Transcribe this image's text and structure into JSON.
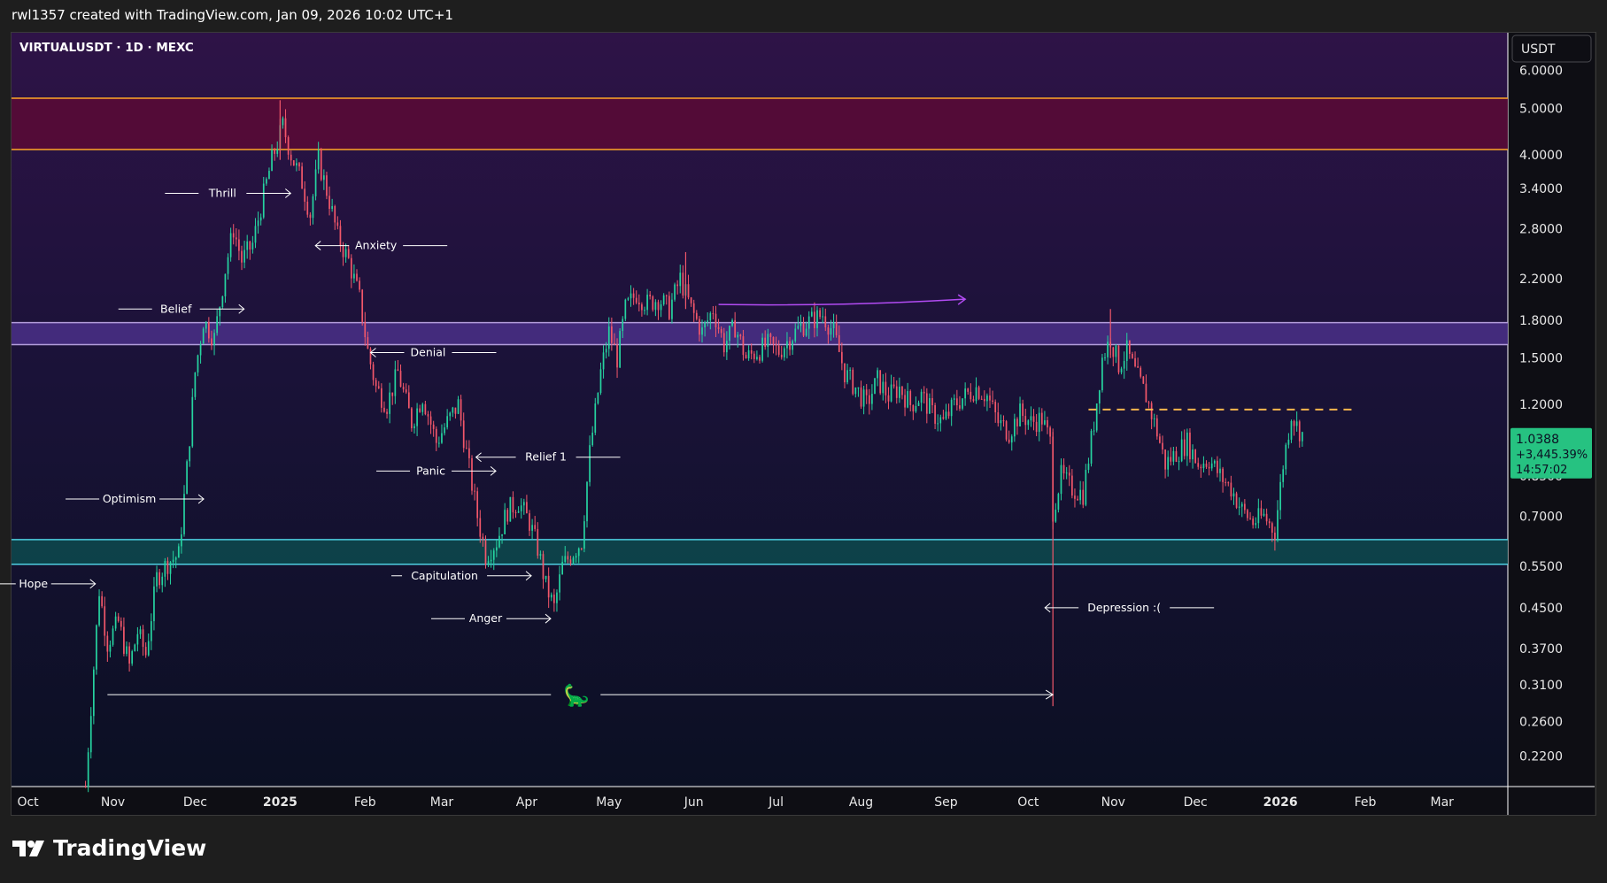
{
  "header": {
    "text": "rwl1357 created with TradingView.com, Jan 09, 2026 10:02 UTC+1"
  },
  "brand": {
    "name": "TradingView"
  },
  "chart_data": {
    "type": "candlestick",
    "symbol": "VIRTUALUSDT · 1D · MEXC",
    "currency": "USDT",
    "scale": "log",
    "ylim": [
      0.19,
      7.2
    ],
    "y_ticks": [
      "6.0000",
      "5.0000",
      "4.0000",
      "3.4000",
      "2.8000",
      "2.2000",
      "1.8000",
      "1.5000",
      "1.2000",
      "0.8500",
      "0.7000",
      "0.5500",
      "0.4500",
      "0.3700",
      "0.3100",
      "0.2600",
      "0.2200"
    ],
    "x_range": [
      "2024-09-25",
      "2026-03-25"
    ],
    "x_ticks": [
      {
        "label": "Oct",
        "date": "2024-10-01"
      },
      {
        "label": "Nov",
        "date": "2024-11-01"
      },
      {
        "label": "Dec",
        "date": "2024-12-01"
      },
      {
        "label": "2025",
        "date": "2025-01-01",
        "bold": true
      },
      {
        "label": "Feb",
        "date": "2025-02-01"
      },
      {
        "label": "Mar",
        "date": "2025-03-01"
      },
      {
        "label": "Apr",
        "date": "2025-04-01"
      },
      {
        "label": "May",
        "date": "2025-05-01"
      },
      {
        "label": "Jun",
        "date": "2025-06-01"
      },
      {
        "label": "Jul",
        "date": "2025-07-01"
      },
      {
        "label": "Aug",
        "date": "2025-08-01"
      },
      {
        "label": "Sep",
        "date": "2025-09-01"
      },
      {
        "label": "Oct",
        "date": "2025-10-01"
      },
      {
        "label": "Nov",
        "date": "2025-11-01"
      },
      {
        "label": "Dec",
        "date": "2025-12-01"
      },
      {
        "label": "2026",
        "date": "2026-01-01",
        "bold": true
      },
      {
        "label": "Feb",
        "date": "2026-02-01"
      },
      {
        "label": "Mar",
        "date": "2026-03-01"
      }
    ],
    "path": [
      [
        "2024-10-22",
        0.19
      ],
      [
        "2024-10-24",
        0.28
      ],
      [
        "2024-10-27",
        0.49
      ],
      [
        "2024-10-30",
        0.38
      ],
      [
        "2024-11-03",
        0.42
      ],
      [
        "2024-11-07",
        0.34
      ],
      [
        "2024-11-10",
        0.4
      ],
      [
        "2024-11-13",
        0.36
      ],
      [
        "2024-11-17",
        0.52
      ],
      [
        "2024-11-21",
        0.56
      ],
      [
        "2024-11-25",
        0.58
      ],
      [
        "2024-11-28",
        0.88
      ],
      [
        "2024-12-01",
        1.4
      ],
      [
        "2024-12-04",
        1.8
      ],
      [
        "2024-12-08",
        1.65
      ],
      [
        "2024-12-12",
        2.3
      ],
      [
        "2024-12-15",
        2.8
      ],
      [
        "2024-12-18",
        2.4
      ],
      [
        "2024-12-22",
        2.6
      ],
      [
        "2024-12-26",
        3.3
      ],
      [
        "2024-12-29",
        3.9
      ],
      [
        "2025-01-02",
        4.6
      ],
      [
        "2025-01-05",
        4.0
      ],
      [
        "2025-01-09",
        3.5
      ],
      [
        "2025-01-12",
        3.0
      ],
      [
        "2025-01-15",
        3.9
      ],
      [
        "2025-01-19",
        3.2
      ],
      [
        "2025-01-22",
        2.7
      ],
      [
        "2025-01-26",
        2.4
      ],
      [
        "2025-01-30",
        2.0
      ],
      [
        "2025-02-02",
        1.55
      ],
      [
        "2025-02-05",
        1.3
      ],
      [
        "2025-02-09",
        1.2
      ],
      [
        "2025-02-13",
        1.4
      ],
      [
        "2025-02-18",
        1.1
      ],
      [
        "2025-02-22",
        1.25
      ],
      [
        "2025-02-27",
        1.0
      ],
      [
        "2025-03-03",
        1.1
      ],
      [
        "2025-03-07",
        1.2
      ],
      [
        "2025-03-10",
        0.95
      ],
      [
        "2025-03-14",
        0.7
      ],
      [
        "2025-03-17",
        0.58
      ],
      [
        "2025-03-21",
        0.62
      ],
      [
        "2025-03-25",
        0.72
      ],
      [
        "2025-03-29",
        0.75
      ],
      [
        "2025-04-02",
        0.68
      ],
      [
        "2025-04-05",
        0.6
      ],
      [
        "2025-04-08",
        0.5
      ],
      [
        "2025-04-11",
        0.45
      ],
      [
        "2025-04-14",
        0.55
      ],
      [
        "2025-04-17",
        0.58
      ],
      [
        "2025-04-21",
        0.62
      ],
      [
        "2025-04-24",
        0.95
      ],
      [
        "2025-04-28",
        1.4
      ],
      [
        "2025-05-01",
        1.7
      ],
      [
        "2025-05-04",
        1.5
      ],
      [
        "2025-05-07",
        1.9
      ],
      [
        "2025-05-11",
        2.05
      ],
      [
        "2025-05-15",
        1.95
      ],
      [
        "2025-05-19",
        2.0
      ],
      [
        "2025-05-23",
        1.9
      ],
      [
        "2025-05-27",
        2.2
      ],
      [
        "2025-05-31",
        1.9
      ],
      [
        "2025-06-04",
        1.7
      ],
      [
        "2025-06-08",
        1.9
      ],
      [
        "2025-06-12",
        1.6
      ],
      [
        "2025-06-16",
        1.75
      ],
      [
        "2025-06-20",
        1.5
      ],
      [
        "2025-06-24",
        1.55
      ],
      [
        "2025-06-28",
        1.6
      ],
      [
        "2025-07-02",
        1.55
      ],
      [
        "2025-07-06",
        1.65
      ],
      [
        "2025-07-10",
        1.75
      ],
      [
        "2025-07-14",
        1.8
      ],
      [
        "2025-07-18",
        1.85
      ],
      [
        "2025-07-22",
        1.7
      ],
      [
        "2025-07-26",
        1.4
      ],
      [
        "2025-07-30",
        1.3
      ],
      [
        "2025-08-03",
        1.2
      ],
      [
        "2025-08-07",
        1.35
      ],
      [
        "2025-08-11",
        1.25
      ],
      [
        "2025-08-15",
        1.3
      ],
      [
        "2025-08-19",
        1.2
      ],
      [
        "2025-08-23",
        1.25
      ],
      [
        "2025-08-27",
        1.15
      ],
      [
        "2025-08-31",
        1.1
      ],
      [
        "2025-09-04",
        1.2
      ],
      [
        "2025-09-08",
        1.25
      ],
      [
        "2025-09-12",
        1.3
      ],
      [
        "2025-09-16",
        1.25
      ],
      [
        "2025-09-20",
        1.1
      ],
      [
        "2025-09-24",
        1.05
      ],
      [
        "2025-09-28",
        1.15
      ],
      [
        "2025-10-02",
        1.1
      ],
      [
        "2025-10-06",
        1.12
      ],
      [
        "2025-10-09",
        1.0
      ],
      [
        "2025-10-10",
        0.72
      ],
      [
        "2025-10-13",
        0.85
      ],
      [
        "2025-10-17",
        0.8
      ],
      [
        "2025-10-21",
        0.78
      ],
      [
        "2025-10-25",
        1.1
      ],
      [
        "2025-10-28",
        1.5
      ],
      [
        "2025-10-31",
        1.65
      ],
      [
        "2025-11-03",
        1.45
      ],
      [
        "2025-11-06",
        1.55
      ],
      [
        "2025-11-09",
        1.4
      ],
      [
        "2025-11-13",
        1.25
      ],
      [
        "2025-11-17",
        1.05
      ],
      [
        "2025-11-20",
        0.9
      ],
      [
        "2025-11-24",
        0.95
      ],
      [
        "2025-11-28",
        1.0
      ],
      [
        "2025-12-02",
        0.9
      ],
      [
        "2025-12-06",
        0.92
      ],
      [
        "2025-12-10",
        0.85
      ],
      [
        "2025-12-14",
        0.8
      ],
      [
        "2025-12-18",
        0.72
      ],
      [
        "2025-12-22",
        0.68
      ],
      [
        "2025-12-26",
        0.7
      ],
      [
        "2025-12-30",
        0.65
      ],
      [
        "2026-01-02",
        0.9
      ],
      [
        "2026-01-05",
        1.15
      ],
      [
        "2026-01-07",
        1.08
      ],
      [
        "2026-01-09",
        1.04
      ]
    ],
    "wick_spikes": [
      {
        "date": "2025-10-10",
        "low": 0.28,
        "high": 1.05
      },
      {
        "date": "2025-01-01",
        "low": 3.9,
        "high": 5.2
      },
      {
        "date": "2025-05-29",
        "low": 1.9,
        "high": 2.5
      },
      {
        "date": "2025-10-31",
        "low": 1.5,
        "high": 1.9
      }
    ],
    "zones": [
      {
        "name": "red-resistance",
        "low": 4.1,
        "high": 5.25,
        "color": "#5a0a35",
        "border": "#ffa726"
      },
      {
        "name": "purple-zone",
        "low": 1.6,
        "high": 1.78,
        "color": "#4a3088",
        "border": "#b39ddb"
      },
      {
        "name": "teal-support",
        "low": 0.555,
        "high": 0.625,
        "color": "#0d4a4e",
        "border": "#4dd0e1"
      }
    ],
    "dashed_line": {
      "value": 1.17,
      "from": "2025-10-23",
      "to": "2026-01-29",
      "color": "#ffb74d"
    },
    "purple_arrow": {
      "value": 1.95,
      "from": "2025-06-10",
      "to": "2025-09-08"
    },
    "dino_line": {
      "value": 0.296,
      "from": "2024-10-30",
      "to": "2025-10-10"
    },
    "annotations": [
      {
        "text": "Hope",
        "date": "2024-10-03",
        "value": 0.505,
        "arrow": "right",
        "tail_left": 38,
        "tail_right": 50
      },
      {
        "text": "Optimism",
        "date": "2024-11-07",
        "value": 0.76,
        "arrow": "right",
        "tail_left": 38,
        "tail_right": 50
      },
      {
        "text": "Belief",
        "date": "2024-11-24",
        "value": 1.9,
        "arrow": "right",
        "tail_left": 38,
        "tail_right": 50
      },
      {
        "text": "Thrill",
        "date": "2024-12-11",
        "value": 3.32,
        "arrow": "right",
        "tail_left": 38,
        "tail_right": 50
      },
      {
        "text": "Anxiety",
        "date": "2025-02-05",
        "value": 2.58,
        "arrow": "left",
        "tail_left": 38,
        "tail_right": 50
      },
      {
        "text": "Denial",
        "date": "2025-02-24",
        "value": 1.54,
        "arrow": "left",
        "tail_left": 38,
        "tail_right": 50
      },
      {
        "text": "Panic",
        "date": "2025-02-25",
        "value": 0.87,
        "arrow": "right",
        "tail_left": 38,
        "tail_right": 50
      },
      {
        "text": "Relief 1",
        "date": "2025-04-08",
        "value": 0.93,
        "arrow": "left",
        "tail_left": 45,
        "tail_right": 50
      },
      {
        "text": "Capitulation",
        "date": "2025-03-02",
        "value": 0.525,
        "arrow": "right",
        "tail_left": 12,
        "tail_right": 50
      },
      {
        "text": "Anger",
        "date": "2025-03-17",
        "value": 0.427,
        "arrow": "right",
        "tail_left": 38,
        "tail_right": 50
      },
      {
        "text": "Depression :(",
        "date": "2025-11-05",
        "value": 0.45,
        "arrow": "left",
        "tail_left": 38,
        "tail_right": 50
      }
    ],
    "last": {
      "price": "1.0388",
      "change": "+3,445.39%",
      "countdown": "14:57:02",
      "value": 1.0388,
      "color": "#26c281"
    }
  }
}
